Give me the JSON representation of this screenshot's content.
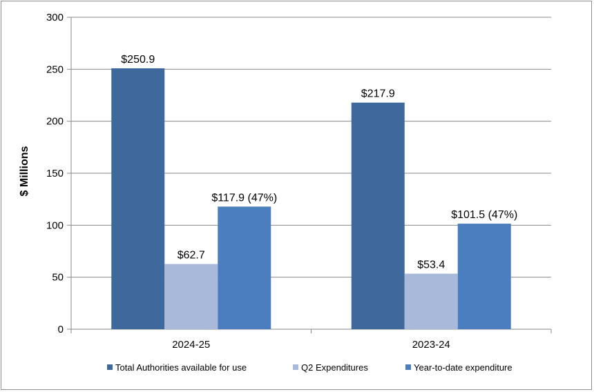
{
  "chart_data": {
    "type": "bar",
    "categories": [
      "2024-25",
      "2023-24"
    ],
    "series": [
      {
        "name": "Total Authorities available for use",
        "color": "#3f689d",
        "values": [
          250.9,
          217.9
        ],
        "labels": [
          "$250.9",
          "$217.9"
        ]
      },
      {
        "name": "Q2 Expenditures",
        "color": "#a9b9da",
        "values": [
          62.7,
          53.4
        ],
        "labels": [
          "$62.7",
          "$53.4"
        ]
      },
      {
        "name": "Year-to-date expenditure",
        "color": "#4b7ebf",
        "values": [
          117.9,
          101.5
        ],
        "labels": [
          "$117.9 (47%)",
          "$101.5 (47%)"
        ]
      }
    ],
    "ylabel": "$ Millions",
    "xlabel": "",
    "ylim": [
      0,
      300
    ],
    "yticks": [
      0,
      50,
      100,
      150,
      200,
      250,
      300
    ],
    "grid": true,
    "legend_position": "bottom"
  }
}
